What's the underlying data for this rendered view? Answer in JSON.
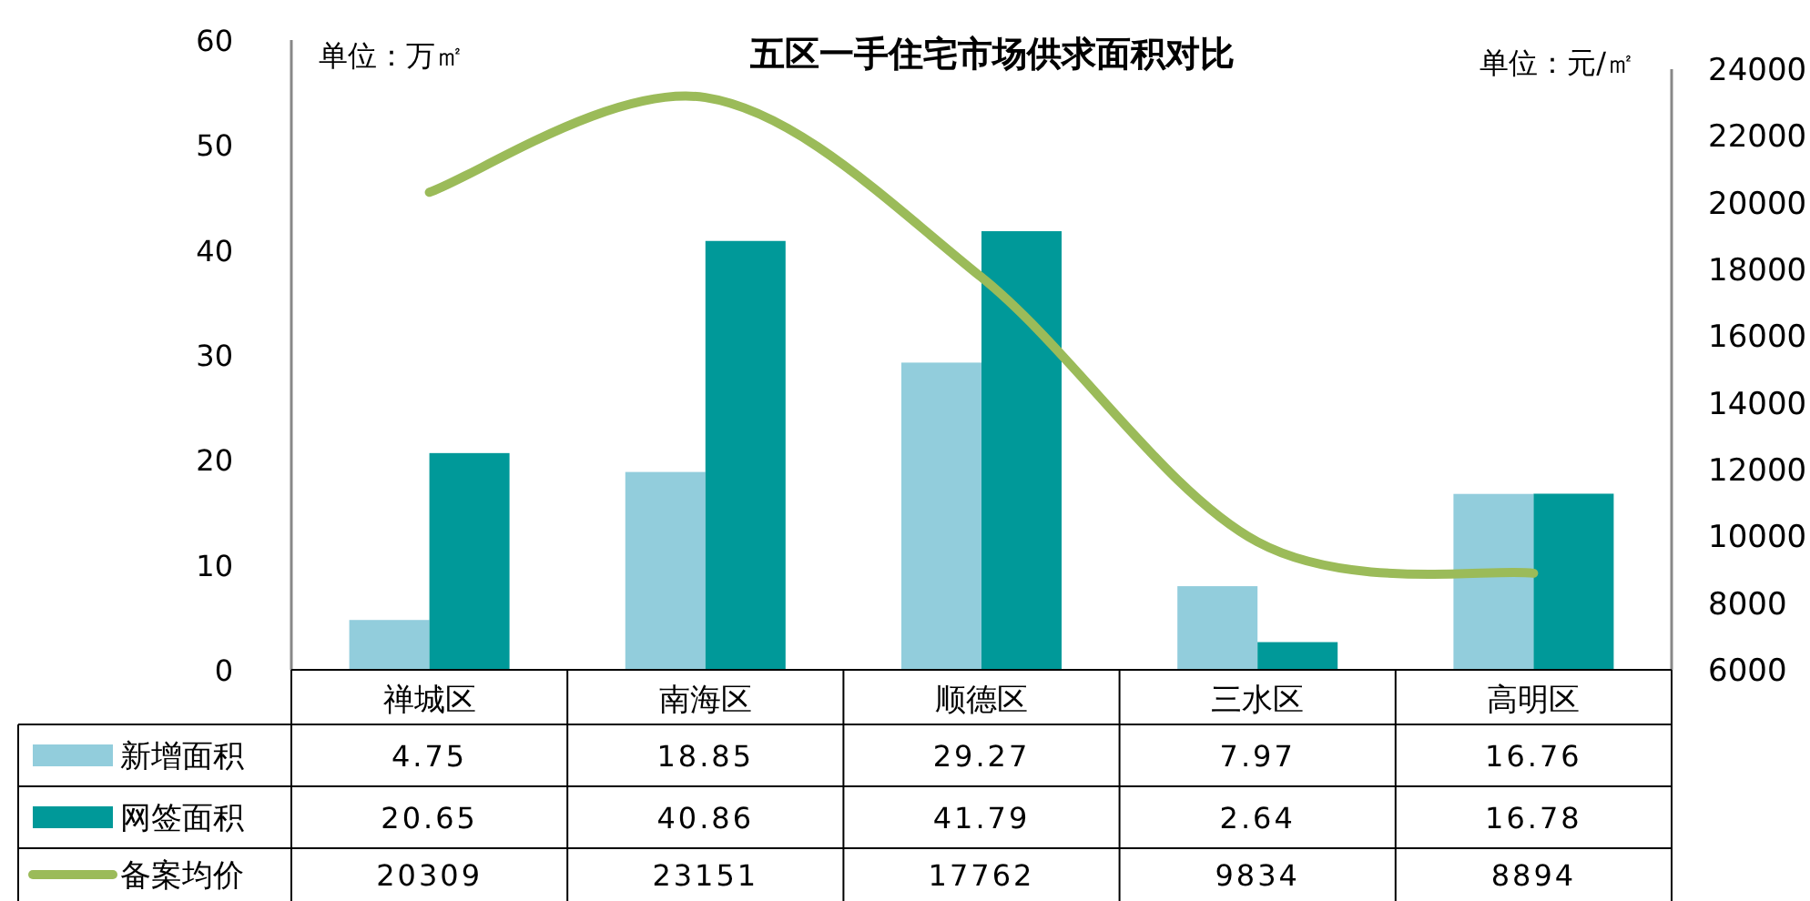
{
  "chart_data": {
    "type": "bar",
    "title": "五区一手住宅市场供求面积对比",
    "ylabel": "单位：万㎡",
    "y2label": "单位：元/㎡",
    "categories": [
      "禅城区",
      "南海区",
      "顺德区",
      "三水区",
      "高明区"
    ],
    "series": [
      {
        "name": "新增面积",
        "color": "#92cddc",
        "values": [
          4.75,
          18.85,
          29.27,
          7.97,
          16.76
        ]
      },
      {
        "name": "网签面积",
        "color": "#009999",
        "values": [
          20.65,
          40.86,
          41.79,
          2.64,
          16.78
        ]
      },
      {
        "name": "备案均价",
        "type": "line",
        "axis": "y2",
        "color": "#9bbb59",
        "values": [
          20309,
          23151,
          17762,
          9834,
          8894
        ]
      }
    ],
    "ylim": [
      0,
      60
    ],
    "yticks": [
      0,
      10,
      20,
      30,
      40,
      50,
      60
    ],
    "y2lim": [
      6000,
      24000
    ],
    "y2ticks": [
      6000,
      8000,
      10000,
      12000,
      14000,
      16000,
      18000,
      20000,
      22000,
      24000
    ],
    "data_labels": true,
    "legend": "bottom left",
    "grid": false
  }
}
